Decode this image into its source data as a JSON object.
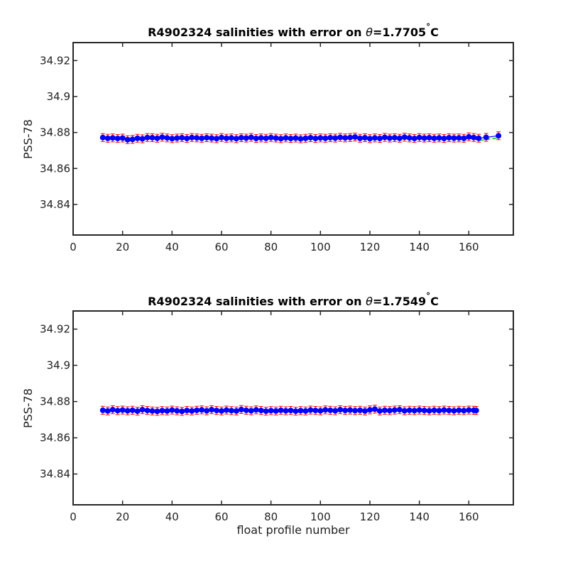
{
  "chart_data": [
    {
      "type": "scatter",
      "title": "R4902324 salinities with error on θ=1.7705°C",
      "title_main": "R4902324 salinities with error on ",
      "title_theta": "θ",
      "title_value": "=1.7705",
      "title_degree": "°",
      "title_unit": "C",
      "xlabel": "",
      "ylabel": "PSS-78",
      "xlim": [
        0,
        178
      ],
      "ylim": [
        34.823,
        34.93
      ],
      "xticks": [
        0,
        20,
        40,
        60,
        80,
        100,
        120,
        140,
        160
      ],
      "yticks": [
        34.84,
        34.86,
        34.88,
        34.9,
        34.92
      ],
      "ytick_labels": [
        "34.84",
        "34.86",
        "34.88",
        "34.9",
        "34.92"
      ],
      "grid": false,
      "colors": {
        "points": "#0000ff",
        "error_bars": "#ff0000",
        "fit_line": "#00cc00"
      },
      "series": [
        {
          "x": [
            12,
            14,
            16,
            18,
            20,
            22,
            24,
            26,
            28,
            30,
            32,
            34,
            36,
            38,
            40,
            42,
            44,
            46,
            48,
            50,
            52,
            54,
            56,
            58,
            60,
            62,
            64,
            66,
            68,
            70,
            72,
            74,
            76,
            78,
            80,
            82,
            84,
            86,
            88,
            90,
            92,
            94,
            96,
            98,
            100,
            102,
            104,
            106,
            108,
            110,
            112,
            114,
            116,
            118,
            120,
            122,
            124,
            126,
            128,
            130,
            132,
            134,
            136,
            138,
            140,
            142,
            144,
            146,
            148,
            150,
            152,
            154,
            156,
            158,
            160,
            162,
            164,
            167,
            172
          ],
          "y": [
            34.8772,
            34.8768,
            34.877,
            34.8767,
            34.8769,
            34.876,
            34.8762,
            34.8768,
            34.8765,
            34.8772,
            34.8771,
            34.8768,
            34.8774,
            34.877,
            34.8766,
            34.8769,
            34.8771,
            34.8767,
            34.8772,
            34.877,
            34.8768,
            34.8771,
            34.8769,
            34.8766,
            34.8772,
            34.8768,
            34.877,
            34.8766,
            34.8771,
            34.8769,
            34.8773,
            34.8767,
            34.877,
            34.8768,
            34.8772,
            34.8769,
            34.8766,
            34.877,
            34.8767,
            34.8769,
            34.8765,
            34.8768,
            34.8771,
            34.8767,
            34.877,
            34.8768,
            34.8771,
            34.8769,
            34.8773,
            34.877,
            34.8772,
            34.8775,
            34.8768,
            34.8771,
            34.8766,
            34.877,
            34.8767,
            34.8773,
            34.8769,
            34.8771,
            34.8768,
            34.8774,
            34.877,
            34.8767,
            34.8772,
            34.8769,
            34.8771,
            34.8768,
            34.877,
            34.8767,
            34.8771,
            34.8769,
            34.877,
            34.8768,
            34.8776,
            34.8772,
            34.8768,
            34.8773,
            34.8782
          ],
          "error": 0.0022
        }
      ],
      "fit_line": {
        "x": [
          12,
          40,
          80,
          120,
          160,
          165,
          172
        ],
        "y": [
          34.8768,
          34.8769,
          34.8769,
          34.8769,
          34.8768,
          34.8757,
          34.877
        ]
      }
    },
    {
      "type": "scatter",
      "title": "R4902324 salinities with error on θ=1.7549°C",
      "title_main": "R4902324 salinities with error on ",
      "title_theta": "θ",
      "title_value": "=1.7549",
      "title_degree": "°",
      "title_unit": "C",
      "xlabel": "float profile number",
      "ylabel": "PSS-78",
      "xlim": [
        0,
        178
      ],
      "ylim": [
        34.823,
        34.93
      ],
      "xticks": [
        0,
        20,
        40,
        60,
        80,
        100,
        120,
        140,
        160
      ],
      "yticks": [
        34.84,
        34.86,
        34.88,
        34.9,
        34.92
      ],
      "ytick_labels": [
        "34.84",
        "34.86",
        "34.88",
        "34.9",
        "34.92"
      ],
      "grid": false,
      "colors": {
        "points": "#0000ff",
        "error_bars": "#ff0000",
        "fit_line": "#00cc00"
      },
      "series": [
        {
          "x": [
            12,
            14,
            16,
            18,
            20,
            22,
            24,
            26,
            28,
            30,
            32,
            34,
            36,
            38,
            40,
            42,
            44,
            46,
            48,
            50,
            52,
            54,
            56,
            58,
            60,
            62,
            64,
            66,
            68,
            70,
            72,
            74,
            76,
            78,
            80,
            82,
            84,
            86,
            88,
            90,
            92,
            94,
            96,
            98,
            100,
            102,
            104,
            106,
            108,
            110,
            112,
            114,
            116,
            118,
            120,
            122,
            124,
            126,
            128,
            130,
            132,
            134,
            136,
            138,
            140,
            142,
            144,
            146,
            148,
            150,
            152,
            154,
            156,
            158,
            160,
            162,
            163
          ],
          "y": [
            34.8752,
            34.8748,
            34.8755,
            34.875,
            34.8753,
            34.8749,
            34.8752,
            34.8747,
            34.8755,
            34.8751,
            34.8748,
            34.8746,
            34.875,
            34.8748,
            34.8753,
            34.8749,
            34.8746,
            34.8751,
            34.8748,
            34.8752,
            34.8754,
            34.8749,
            34.8755,
            34.8751,
            34.8748,
            34.8753,
            34.875,
            34.8748,
            34.8756,
            34.8752,
            34.8749,
            34.8754,
            34.8751,
            34.8747,
            34.875,
            34.8748,
            34.8752,
            34.8749,
            34.8751,
            34.8747,
            34.875,
            34.8748,
            34.8753,
            34.8751,
            34.8749,
            34.8754,
            34.8752,
            34.8749,
            34.8755,
            34.8751,
            34.8753,
            34.875,
            34.8752,
            34.8748,
            34.8754,
            34.8758,
            34.8748,
            34.8752,
            34.875,
            34.8753,
            34.8755,
            34.8749,
            34.8752,
            34.875,
            34.8753,
            34.8751,
            34.8749,
            34.8752,
            34.875,
            34.8753,
            34.8751,
            34.8749,
            34.8752,
            34.875,
            34.8753,
            34.8752,
            34.8751
          ],
          "error": 0.0022
        }
      ],
      "fit_line": {
        "x": [
          12,
          40,
          80,
          120,
          163
        ],
        "y": [
          34.8751,
          34.875,
          34.875,
          34.8751,
          34.8751
        ]
      }
    }
  ]
}
